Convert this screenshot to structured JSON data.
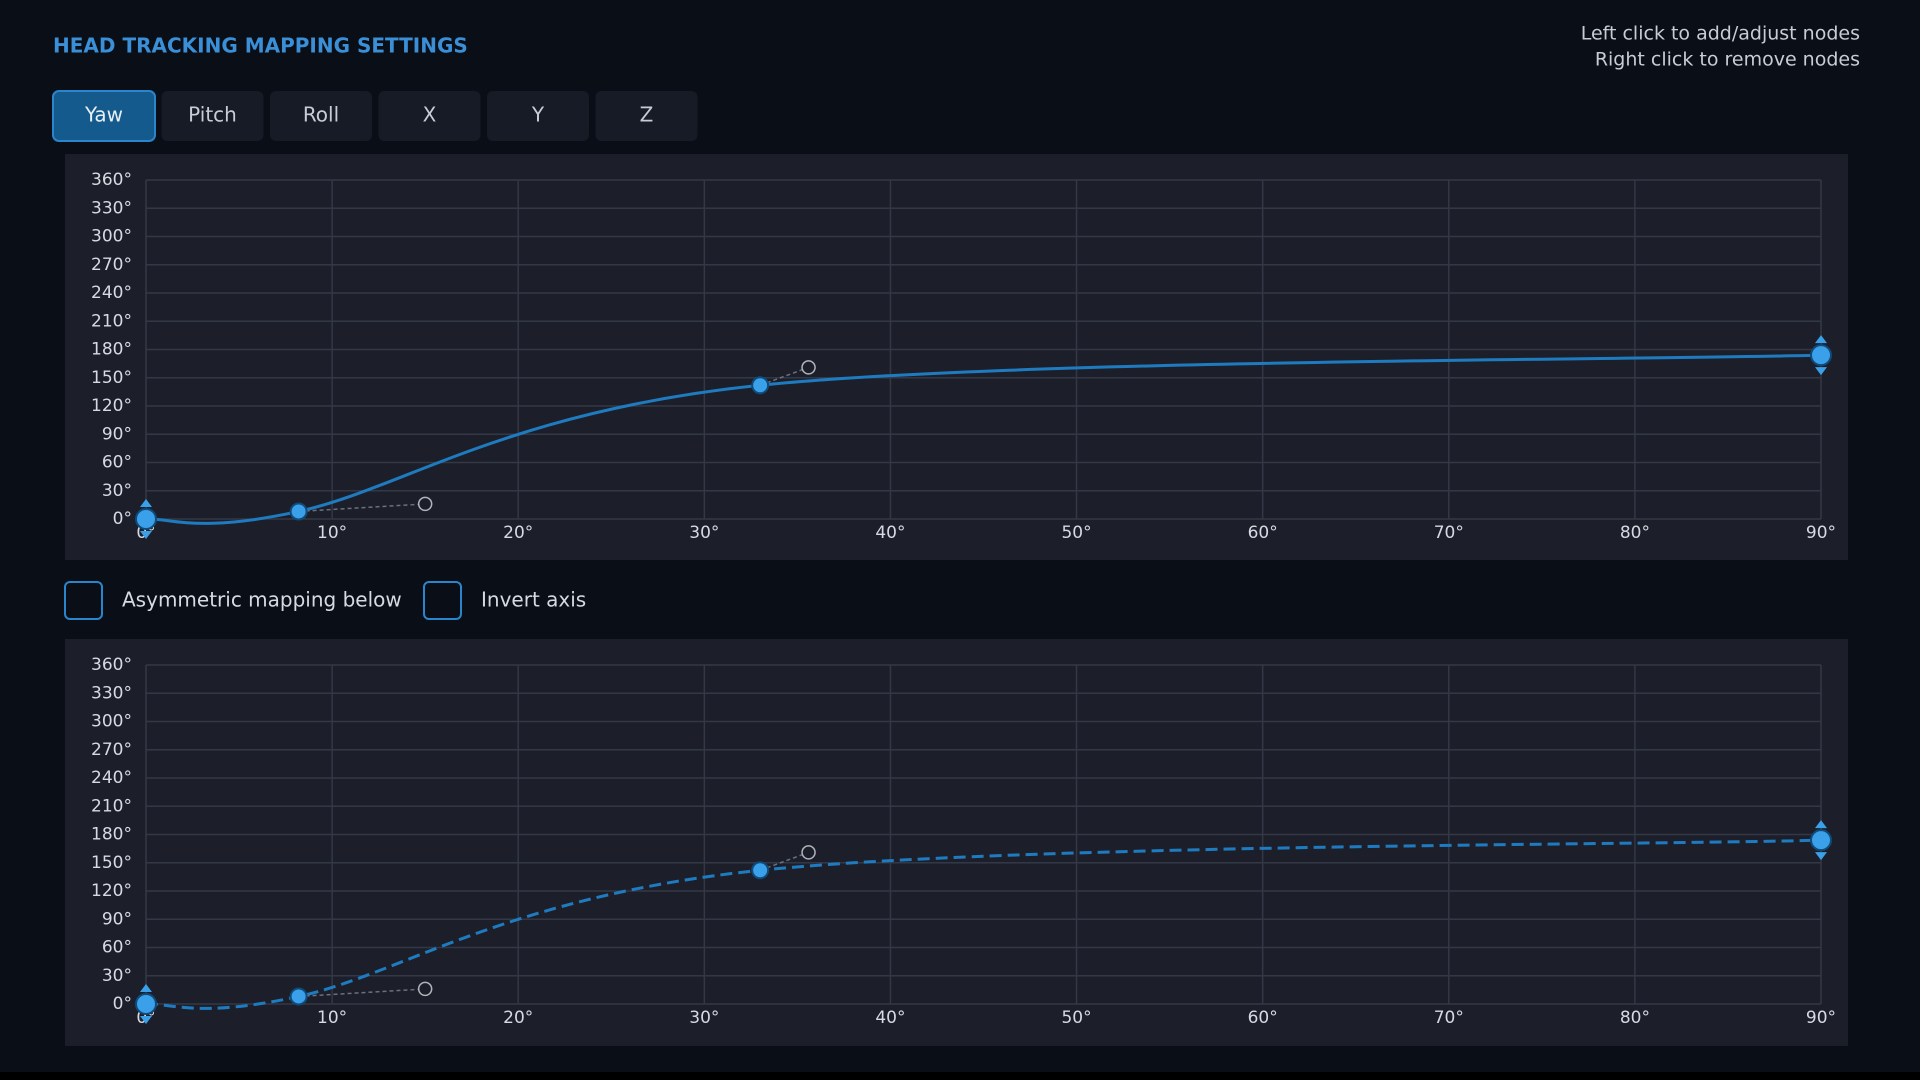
{
  "header": {
    "title": "HEAD TRACKING MAPPING SETTINGS",
    "help": [
      "Left click to add/adjust nodes",
      "Right click to remove nodes"
    ]
  },
  "tabs": {
    "items": [
      "Yaw",
      "Pitch",
      "Roll",
      "X",
      "Y",
      "Z"
    ],
    "active": 0
  },
  "checkboxes": [
    "Asymmetric mapping below",
    "Invert axis"
  ],
  "chart_data": [
    {
      "type": "curve",
      "line_style": "solid",
      "color": "#1f7bc0",
      "grid": true,
      "nodes": {
        "x": [
          0,
          8.2,
          33,
          90
        ],
        "values": [
          0,
          8,
          142,
          174
        ]
      },
      "handles": {
        "x": [
          15,
          35.6
        ],
        "values": [
          16,
          161
        ]
      },
      "xlim": [
        0,
        90
      ],
      "ylim": [
        0,
        360
      ],
      "xticks": [
        {
          "value": 0,
          "label": "0°"
        },
        {
          "value": 10,
          "label": "10°"
        },
        {
          "value": 20,
          "label": "20°"
        },
        {
          "value": 30,
          "label": "30°"
        },
        {
          "value": 40,
          "label": "40°"
        },
        {
          "value": 50,
          "label": "50°"
        },
        {
          "value": 60,
          "label": "60°"
        },
        {
          "value": 70,
          "label": "70°"
        },
        {
          "value": 80,
          "label": "80°"
        },
        {
          "value": 90,
          "label": "90°"
        }
      ],
      "yticks": [
        {
          "value": 0,
          "label": "0°"
        },
        {
          "value": 30,
          "label": "30°"
        },
        {
          "value": 60,
          "label": "60°"
        },
        {
          "value": 90,
          "label": "90°"
        },
        {
          "value": 120,
          "label": "120°"
        },
        {
          "value": 150,
          "label": "150°"
        },
        {
          "value": 180,
          "label": "180°"
        },
        {
          "value": 210,
          "label": "210°"
        },
        {
          "value": 240,
          "label": "240°"
        },
        {
          "value": 270,
          "label": "270°"
        },
        {
          "value": 300,
          "label": "300°"
        },
        {
          "value": 330,
          "label": "330°"
        },
        {
          "value": 360,
          "label": "360°"
        }
      ]
    },
    {
      "type": "curve",
      "line_style": "dashed",
      "color": "#1f7bc0",
      "grid": true,
      "nodes": {
        "x": [
          0,
          8.2,
          33,
          90
        ],
        "values": [
          0,
          8,
          142,
          174
        ]
      },
      "handles": {
        "x": [
          15,
          35.6
        ],
        "values": [
          16,
          161
        ]
      },
      "xlim": [
        0,
        90
      ],
      "ylim": [
        0,
        360
      ],
      "xticks": [
        {
          "value": 0,
          "label": "0°"
        },
        {
          "value": 10,
          "label": "10°"
        },
        {
          "value": 20,
          "label": "20°"
        },
        {
          "value": 30,
          "label": "30°"
        },
        {
          "value": 40,
          "label": "40°"
        },
        {
          "value": 50,
          "label": "50°"
        },
        {
          "value": 60,
          "label": "60°"
        },
        {
          "value": 70,
          "label": "70°"
        },
        {
          "value": 80,
          "label": "80°"
        },
        {
          "value": 90,
          "label": "90°"
        }
      ],
      "yticks": [
        {
          "value": 0,
          "label": "0°"
        },
        {
          "value": 30,
          "label": "30°"
        },
        {
          "value": 60,
          "label": "60°"
        },
        {
          "value": 90,
          "label": "90°"
        },
        {
          "value": 120,
          "label": "120°"
        },
        {
          "value": 150,
          "label": "150°"
        },
        {
          "value": 180,
          "label": "180°"
        },
        {
          "value": 210,
          "label": "210°"
        },
        {
          "value": 240,
          "label": "240°"
        },
        {
          "value": 270,
          "label": "270°"
        },
        {
          "value": 300,
          "label": "300°"
        },
        {
          "value": 330,
          "label": "330°"
        },
        {
          "value": 360,
          "label": "360°"
        }
      ]
    }
  ]
}
